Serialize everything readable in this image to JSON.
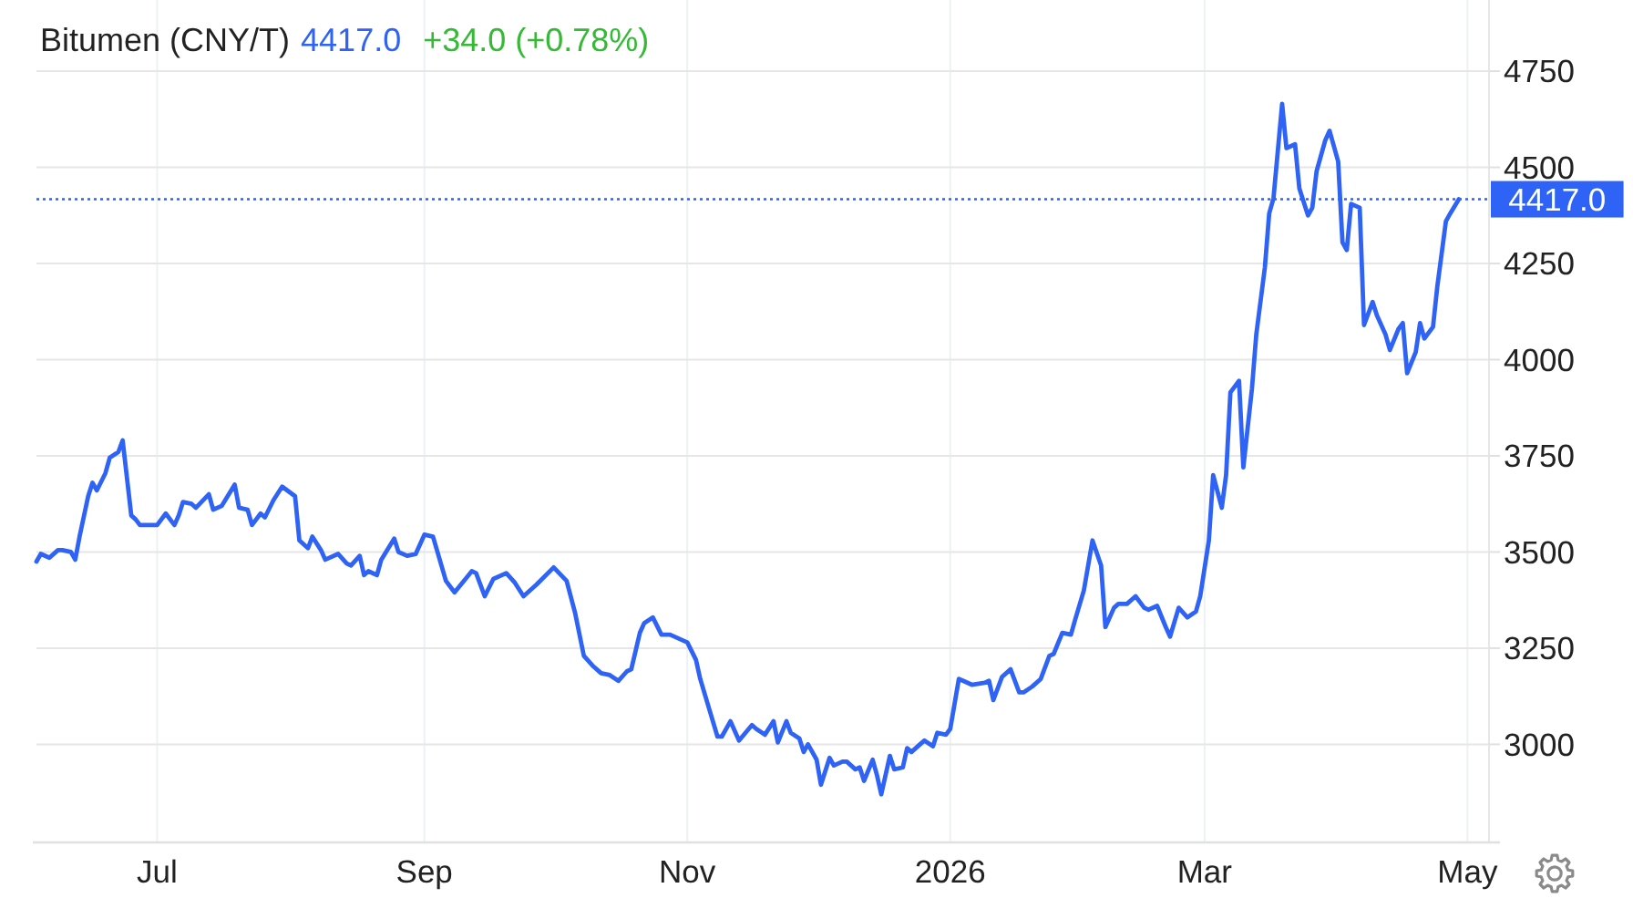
{
  "chart_data": {
    "type": "line",
    "title": "Bitumen (CNY/T)",
    "annotations": [
      "4417.0",
      "+34.0 (+0.78%)"
    ],
    "x": [
      "2025-06-03",
      "2025-06-04",
      "2025-06-06",
      "2025-06-08",
      "2025-06-09",
      "2025-06-11",
      "2025-06-12",
      "2025-06-13",
      "2025-06-15",
      "2025-06-16",
      "2025-06-17",
      "2025-06-19",
      "2025-06-20",
      "2025-06-22",
      "2025-06-23",
      "2025-06-25",
      "2025-06-26",
      "2025-06-27",
      "2025-07-01",
      "2025-07-03",
      "2025-07-05",
      "2025-07-06",
      "2025-07-07",
      "2025-07-09",
      "2025-07-10",
      "2025-07-13",
      "2025-07-14",
      "2025-07-16",
      "2025-07-19",
      "2025-07-20",
      "2025-07-22",
      "2025-07-23",
      "2025-07-25",
      "2025-07-26",
      "2025-07-28",
      "2025-07-30",
      "2025-08-02",
      "2025-08-03",
      "2025-08-05",
      "2025-08-06",
      "2025-08-08",
      "2025-08-09",
      "2025-08-12",
      "2025-08-14",
      "2025-08-15",
      "2025-08-17",
      "2025-08-18",
      "2025-08-19",
      "2025-08-21",
      "2025-08-22",
      "2025-08-25",
      "2025-08-26",
      "2025-08-28",
      "2025-08-30",
      "2025-09-01",
      "2025-09-03",
      "2025-09-06",
      "2025-09-08",
      "2025-09-12",
      "2025-09-13",
      "2025-09-15",
      "2025-09-17",
      "2025-09-20",
      "2025-09-22",
      "2025-09-24",
      "2025-09-27",
      "2025-10-01",
      "2025-10-04",
      "2025-10-06",
      "2025-10-08",
      "2025-10-10",
      "2025-10-12",
      "2025-10-14",
      "2025-10-16",
      "2025-10-18",
      "2025-10-19",
      "2025-10-21",
      "2025-10-22",
      "2025-10-24",
      "2025-10-26",
      "2025-10-28",
      "2025-11-01",
      "2025-11-03",
      "2025-11-04",
      "2025-11-06",
      "2025-11-08",
      "2025-11-09",
      "2025-11-11",
      "2025-11-13",
      "2025-11-16",
      "2025-11-17",
      "2025-11-19",
      "2025-11-21",
      "2025-11-22",
      "2025-11-24",
      "2025-11-25",
      "2025-11-27",
      "2025-11-28",
      "2025-11-29",
      "2025-12-01",
      "2025-12-02",
      "2025-12-04",
      "2025-12-05",
      "2025-12-07",
      "2025-12-08",
      "2025-12-10",
      "2025-12-11",
      "2025-12-12",
      "2025-12-14",
      "2025-12-15",
      "2025-12-16",
      "2025-12-18",
      "2025-12-19",
      "2025-12-21",
      "2025-12-22",
      "2025-12-23",
      "2025-12-25",
      "2025-12-26",
      "2025-12-28",
      "2025-12-29",
      "2025-12-31",
      "2026-01-01",
      "2026-01-03",
      "2026-01-04",
      "2026-01-06",
      "2026-01-09",
      "2026-01-10",
      "2026-01-11",
      "2026-01-13",
      "2026-01-15",
      "2026-01-17",
      "2026-01-18",
      "2026-01-20",
      "2026-01-22",
      "2026-01-24",
      "2026-01-25",
      "2026-01-27",
      "2026-01-29",
      "2026-01-30",
      "2026-02-01",
      "2026-02-03",
      "2026-02-05",
      "2026-02-06",
      "2026-02-08",
      "2026-02-09",
      "2026-02-11",
      "2026-02-13",
      "2026-02-15",
      "2026-02-16",
      "2026-02-18",
      "2026-02-20",
      "2026-02-21",
      "2026-02-23",
      "2026-02-25",
      "2026-02-27",
      "2026-02-28",
      "2026-03-02",
      "2026-03-03",
      "2026-03-05",
      "2026-03-06",
      "2026-03-07",
      "2026-03-09",
      "2026-03-10",
      "2026-03-12",
      "2026-03-13",
      "2026-03-15",
      "2026-03-16",
      "2026-03-17",
      "2026-03-19",
      "2026-03-20",
      "2026-03-22",
      "2026-03-23",
      "2026-03-25",
      "2026-03-26",
      "2026-03-27",
      "2026-03-29",
      "2026-03-30",
      "2026-04-01",
      "2026-04-02",
      "2026-04-03",
      "2026-04-04",
      "2026-04-06",
      "2026-04-07",
      "2026-04-09",
      "2026-04-10",
      "2026-04-12",
      "2026-04-13",
      "2026-04-15",
      "2026-04-16",
      "2026-04-17",
      "2026-04-19",
      "2026-04-20",
      "2026-04-21",
      "2026-04-23",
      "2026-04-24",
      "2026-04-26",
      "2026-04-27",
      "2026-04-29"
    ],
    "series": [
      {
        "color": "#2f63f6",
        "values": [
          3475,
          3495,
          3485,
          3505,
          3505,
          3500,
          3480,
          3540,
          3645,
          3680,
          3660,
          3705,
          3745,
          3760,
          3790,
          3595,
          3585,
          3570,
          3570,
          3600,
          3570,
          3595,
          3630,
          3625,
          3615,
          3650,
          3610,
          3620,
          3675,
          3615,
          3610,
          3570,
          3600,
          3590,
          3635,
          3670,
          3645,
          3530,
          3510,
          3540,
          3505,
          3480,
          3495,
          3470,
          3465,
          3490,
          3440,
          3450,
          3440,
          3480,
          3535,
          3500,
          3490,
          3495,
          3545,
          3540,
          3425,
          3395,
          3450,
          3445,
          3385,
          3430,
          3445,
          3420,
          3385,
          3415,
          3460,
          3425,
          3340,
          3230,
          3205,
          3185,
          3180,
          3165,
          3190,
          3195,
          3290,
          3315,
          3330,
          3285,
          3285,
          3265,
          3220,
          3170,
          3095,
          3020,
          3020,
          3060,
          3010,
          3050,
          3040,
          3025,
          3060,
          3005,
          3060,
          3030,
          3015,
          2980,
          3000,
          2960,
          2895,
          2965,
          2945,
          2955,
          2955,
          2935,
          2940,
          2905,
          2960,
          2920,
          2870,
          2970,
          2935,
          2940,
          2990,
          2980,
          3000,
          3010,
          2995,
          3030,
          3025,
          3040,
          3170,
          3165,
          3155,
          3160,
          3165,
          3115,
          3175,
          3195,
          3135,
          3135,
          3150,
          3170,
          3230,
          3235,
          3290,
          3285,
          3325,
          3400,
          3530,
          3465,
          3305,
          3355,
          3365,
          3365,
          3385,
          3355,
          3350,
          3360,
          3305,
          3280,
          3355,
          3330,
          3345,
          3385,
          3530,
          3700,
          3615,
          3700,
          3915,
          3945,
          3720,
          3925,
          4065,
          4240,
          4380,
          4420,
          4665,
          4550,
          4560,
          4445,
          4375,
          4395,
          4490,
          4570,
          4595,
          4515,
          4305,
          4285,
          4405,
          4395,
          4090,
          4150,
          4115,
          4065,
          4025,
          4080,
          4095,
          3965,
          4020,
          4095,
          4055,
          4085,
          4190,
          4360,
          4380,
          4417
        ]
      }
    ],
    "xlim": [
      "2025-06-03",
      "2026-05-06"
    ],
    "xticks": [
      {
        "value": "2025-07-01",
        "label": "Jul"
      },
      {
        "value": "2025-09-01",
        "label": "Sep"
      },
      {
        "value": "2025-11-01",
        "label": "Nov"
      },
      {
        "value": "2026-01-01",
        "label": "2026"
      },
      {
        "value": "2026-03-01",
        "label": "Mar"
      },
      {
        "value": "2026-05-01",
        "label": "May"
      }
    ],
    "ylim": [
      2745,
      4935
    ],
    "yticks": [
      3000,
      3250,
      3500,
      3750,
      4000,
      4250,
      4500,
      4750
    ],
    "grid": true,
    "ref_lines": [
      {
        "axis": "y",
        "value": 4417,
        "label": "4417.0",
        "color": "#2f63f6",
        "line_style": "dotted"
      }
    ]
  }
}
